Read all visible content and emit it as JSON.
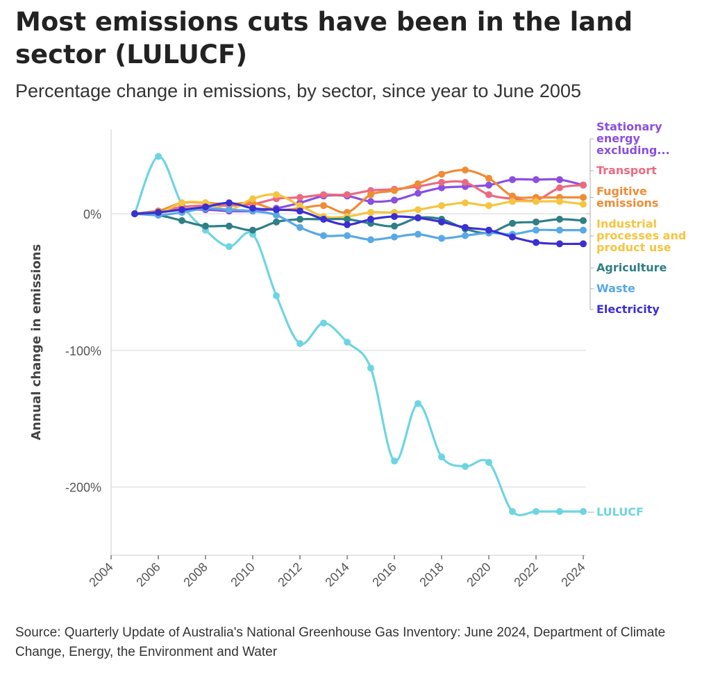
{
  "title": "Most emissions cuts have been in the land sector (LULUCF)",
  "subtitle": "Percentage change in emissions, by sector, since year to June 2005",
  "source": "Source: Quarterly Update of Australia's National Greenhouse Gas Inventory: June 2024, Department of Climate Change, Energy, the Environment and Water",
  "chart_data": {
    "type": "line",
    "ylabel": "Annual change in emissions",
    "xlabel": "",
    "xlim": [
      2004,
      2024
    ],
    "ylim": [
      -250,
      62
    ],
    "x_ticks": [
      "2004",
      "2006",
      "2008",
      "2010",
      "2012",
      "2014",
      "2016",
      "2018",
      "2020",
      "2022",
      "2024"
    ],
    "y_ticks": [
      {
        "value": 0,
        "label": "0%"
      },
      {
        "value": -100,
        "label": "-100%"
      },
      {
        "value": -200,
        "label": "-200%"
      }
    ],
    "x": [
      2005,
      2006,
      2007,
      2008,
      2009,
      2010,
      2011,
      2012,
      2013,
      2014,
      2015,
      2016,
      2017,
      2018,
      2019,
      2020,
      2021,
      2022,
      2023,
      2024
    ],
    "grid": "horizontal",
    "legend": "direct labels at right end of lines",
    "series": [
      {
        "name": "Stationary energy excluding...",
        "label_lines": [
          "Stationary",
          "energy",
          "excluding..."
        ],
        "color": "#8a4fe0",
        "values": [
          0,
          2,
          3,
          3,
          2,
          2,
          4,
          8,
          13,
          13,
          9,
          10,
          15,
          19,
          20,
          21,
          25,
          25,
          25,
          21
        ]
      },
      {
        "name": "Transport",
        "label_lines": [
          "Transport"
        ],
        "color": "#ec6a80",
        "values": [
          0,
          2,
          5,
          6,
          6,
          7,
          11,
          12,
          14,
          14,
          17,
          18,
          20,
          23,
          23,
          14,
          11,
          10,
          19,
          21
        ]
      },
      {
        "name": "Fugitive emissions",
        "label_lines": [
          "Fugitive",
          "emissions"
        ],
        "color": "#ef8c35",
        "values": [
          0,
          2,
          8,
          8,
          7,
          8,
          3,
          4,
          6,
          1,
          14,
          17,
          22,
          29,
          32,
          26,
          13,
          12,
          12,
          12
        ]
      },
      {
        "name": "Industrial processes and product use",
        "label_lines": [
          "Industrial",
          "processes and",
          "product use"
        ],
        "color": "#f5c440",
        "values": [
          0,
          0,
          8,
          8,
          3,
          11,
          14,
          6,
          -2,
          -2,
          1,
          1,
          3,
          6,
          8,
          6,
          9,
          9,
          9,
          7
        ]
      },
      {
        "name": "Agriculture",
        "label_lines": [
          "Agriculture"
        ],
        "color": "#2f7f86",
        "values": [
          0,
          -1,
          -5,
          -9,
          -9,
          -12,
          -6,
          -4,
          -4,
          -4,
          -7,
          -9,
          -3,
          -4,
          -11,
          -14,
          -7,
          -6,
          -4,
          -5
        ]
      },
      {
        "name": "Waste",
        "label_lines": [
          "Waste"
        ],
        "color": "#58a9e6",
        "values": [
          0,
          -1,
          1,
          4,
          3,
          2,
          -1,
          -10,
          -16,
          -16,
          -19,
          -17,
          -15,
          -18,
          -16,
          -14,
          -15,
          -12,
          -12,
          -12
        ]
      },
      {
        "name": "Electricity",
        "label_lines": [
          "Electricity"
        ],
        "color": "#3b2fd2",
        "values": [
          0,
          1,
          3,
          5,
          8,
          4,
          3,
          2,
          -4,
          -8,
          -4,
          -2,
          -3,
          -6,
          -10,
          -12,
          -17,
          -21,
          -22,
          -22
        ]
      },
      {
        "name": "LULUCF",
        "label_lines": [
          "LULUCF"
        ],
        "color": "#6dd5e2",
        "values": [
          0,
          42,
          7,
          -12,
          -24,
          -15,
          -60,
          -95,
          -80,
          -94,
          -113,
          -181,
          -139,
          -178,
          -185,
          -182,
          -218,
          -218,
          -218,
          -218
        ]
      }
    ]
  }
}
